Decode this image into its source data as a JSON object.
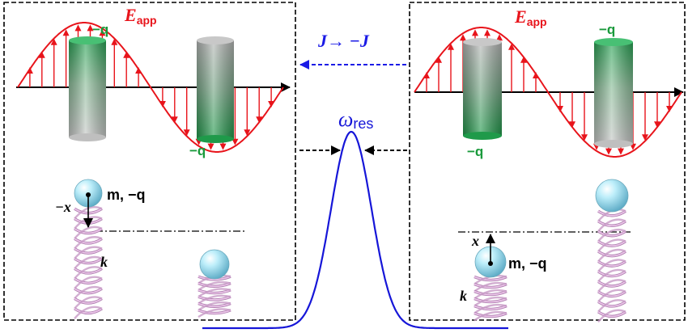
{
  "left_panel": {
    "field_label": {
      "main": "E",
      "sub": "app"
    },
    "charge_top": "−q",
    "charge_bottom": "−q",
    "mass_label": "m, −q",
    "displacement_label": "−x",
    "spring_label": "k"
  },
  "right_panel": {
    "field_label": {
      "main": "E",
      "sub": "app"
    },
    "charge_top": "−q",
    "charge_bottom": "−q",
    "mass_label": "m, −q",
    "displacement_label": "x",
    "spring_label": "k"
  },
  "center": {
    "current_label": "J→ −J",
    "resonance_label": {
      "main": "ω",
      "sub": "res"
    }
  },
  "colors": {
    "field": "#e8141b",
    "charge_text": "#1a9a3c",
    "arrow_blue": "#1a1ae6",
    "peak_blue": "#1616d8",
    "spring": "#d9a6d6",
    "sphere": "#a8e4f0",
    "border": "#000000"
  }
}
